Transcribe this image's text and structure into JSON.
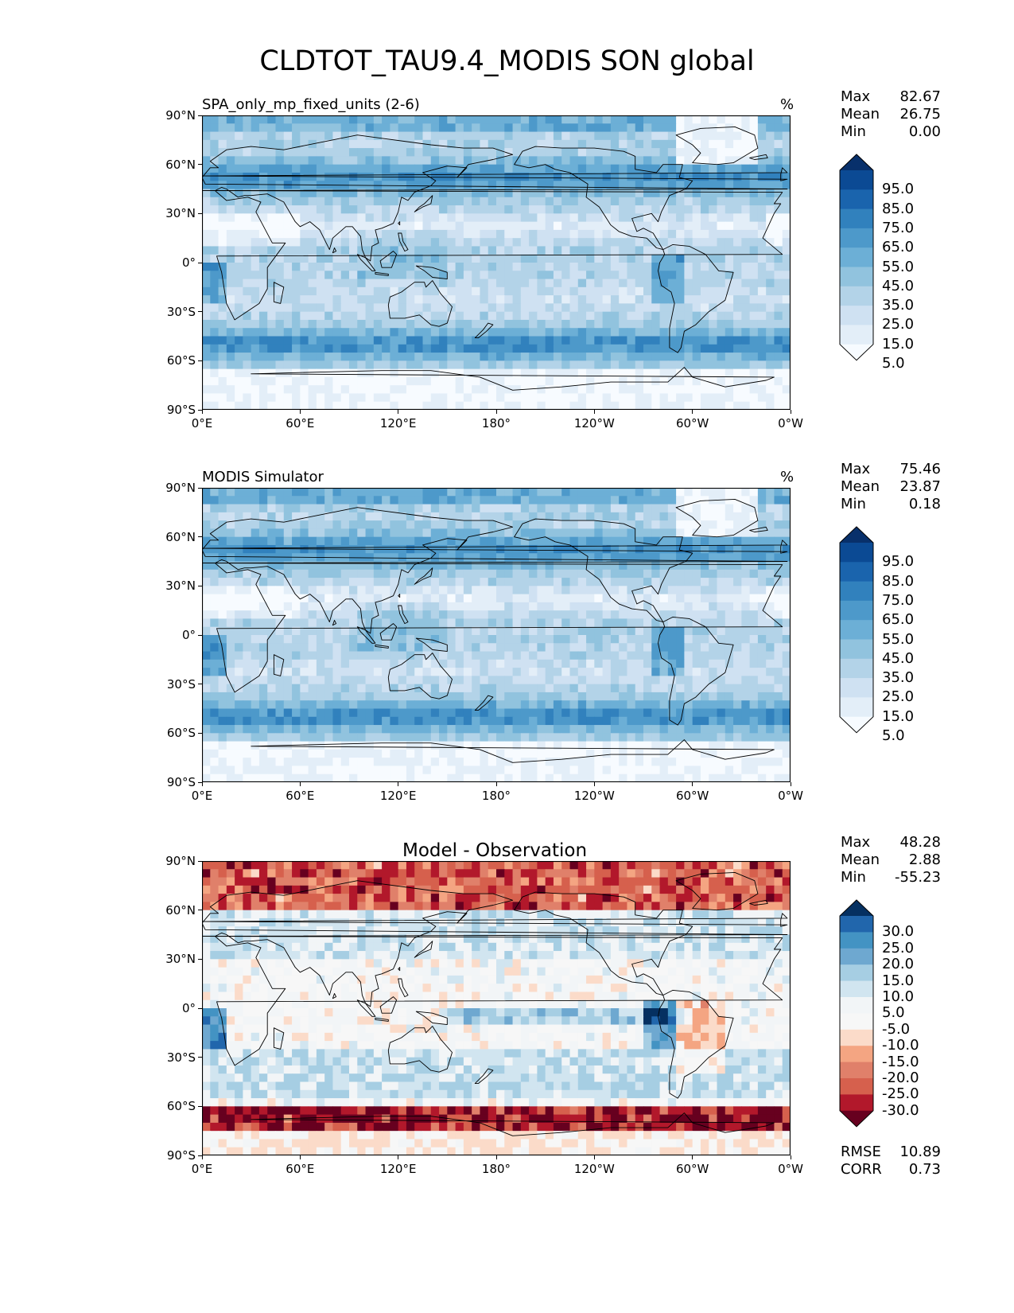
{
  "title": "CLDTOT_TAU9.4_MODIS SON global",
  "panels": [
    {
      "id": "test",
      "left_label": "SPA_only_mp_fixed_units (2-6)",
      "units": "%",
      "stats": [
        {
          "name": "Max",
          "value": "82.67"
        },
        {
          "name": "Mean",
          "value": "26.75"
        },
        {
          "name": "Min",
          "value": "0.00"
        }
      ],
      "colorbar": {
        "ticks": [
          "95.0",
          "85.0",
          "75.0",
          "65.0",
          "55.0",
          "45.0",
          "35.0",
          "25.0",
          "15.0",
          "5.0"
        ],
        "colors": [
          "#08306b",
          "#0b4a94",
          "#1a64ad",
          "#3181bd",
          "#4d99ca",
          "#6cafd6",
          "#91c3de",
          "#b3d3e8",
          "#cfe1f2",
          "#e3eef8",
          "#f7fbff"
        ]
      }
    },
    {
      "id": "reference",
      "left_label": "MODIS Simulator",
      "units": "%",
      "stats": [
        {
          "name": "Max",
          "value": "75.46"
        },
        {
          "name": "Mean",
          "value": "23.87"
        },
        {
          "name": "Min",
          "value": "0.18"
        }
      ],
      "colorbar": {
        "ticks": [
          "95.0",
          "85.0",
          "75.0",
          "65.0",
          "55.0",
          "45.0",
          "35.0",
          "25.0",
          "15.0",
          "5.0"
        ],
        "colors": [
          "#08306b",
          "#0b4a94",
          "#1a64ad",
          "#3181bd",
          "#4d99ca",
          "#6cafd6",
          "#91c3de",
          "#b3d3e8",
          "#cfe1f2",
          "#e3eef8",
          "#f7fbff"
        ]
      }
    },
    {
      "id": "difference",
      "center_title": "Model - Observation",
      "stats": [
        {
          "name": "Max",
          "value": "48.28"
        },
        {
          "name": "Mean",
          "value": "2.88"
        },
        {
          "name": "Min",
          "value": "-55.23"
        }
      ],
      "extra_stats": [
        {
          "name": "RMSE",
          "value": "10.89"
        },
        {
          "name": "CORR",
          "value": "0.73"
        }
      ],
      "colorbar": {
        "ticks": [
          "30.0",
          "25.0",
          "20.0",
          "15.0",
          "10.0",
          "5.0",
          "-5.0",
          "-10.0",
          "-15.0",
          "-20.0",
          "-25.0",
          "-30.0"
        ],
        "colors": [
          "#053061",
          "#2166ac",
          "#4393c3",
          "#6ea8d0",
          "#a6cee3",
          "#d1e5f0",
          "#f2f5f7",
          "#f7f7f7",
          "#fbdbc9",
          "#f4a582",
          "#e0806a",
          "#d6604d",
          "#b2182b",
          "#67001f"
        ]
      }
    }
  ],
  "chart_data": {
    "type": "heatmap",
    "title": "CLDTOT_TAU9.4_MODIS SON global",
    "x_ticks": [
      "0°E",
      "60°E",
      "120°E",
      "180°",
      "120°W",
      "60°W",
      "0°W"
    ],
    "y_ticks": [
      "90°N",
      "60°N",
      "30°N",
      "0°",
      "30°S",
      "60°S",
      "90°S"
    ],
    "xlim": [
      0,
      360
    ],
    "ylim": [
      -90,
      90
    ],
    "maps": [
      {
        "panel": "SPA_only_mp_fixed_units (2-6)",
        "units": "%",
        "max": 82.67,
        "mean": 26.75,
        "min": 0.0,
        "colorbar_range": [
          5.0,
          95.0
        ]
      },
      {
        "panel": "MODIS Simulator",
        "units": "%",
        "max": 75.46,
        "mean": 23.87,
        "min": 0.18,
        "colorbar_range": [
          5.0,
          95.0
        ]
      },
      {
        "panel": "Model - Observation",
        "max": 48.28,
        "mean": 2.88,
        "min": -55.23,
        "rmse": 10.89,
        "corr": 0.73,
        "colorbar_range": [
          -30.0,
          30.0
        ]
      }
    ]
  }
}
